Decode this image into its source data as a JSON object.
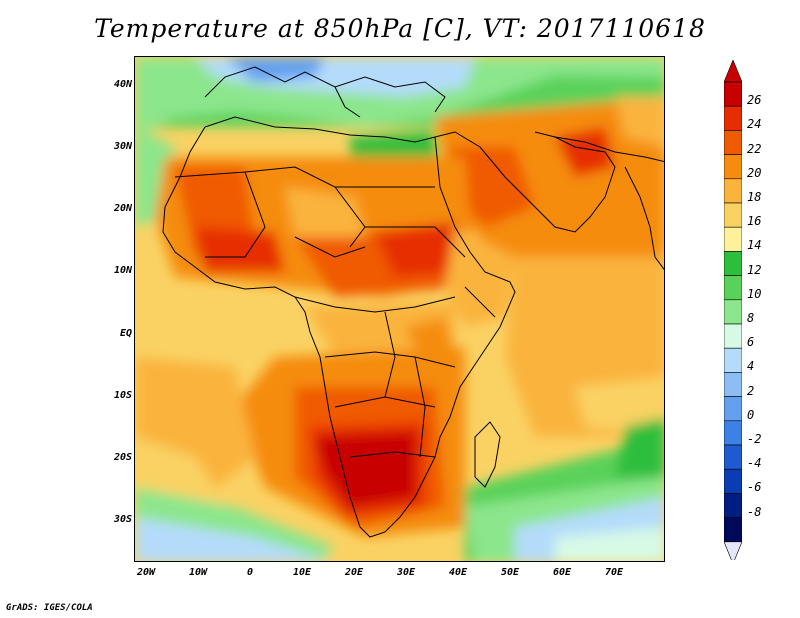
{
  "title": "Temperature at 850hPa [C], VT: 2017110618",
  "map": {
    "variable": "Temperature at 850hPa",
    "units": "C",
    "valid_time": "2017110618",
    "region": "Africa and Middle East",
    "lat_labels": [
      "40N",
      "30N",
      "20N",
      "10N",
      "EQ",
      "10S",
      "20S",
      "30S"
    ],
    "lon_labels": [
      "20W",
      "10W",
      "0",
      "10E",
      "20E",
      "30E",
      "40E",
      "50E",
      "60E",
      "70E"
    ]
  },
  "legend": {
    "levels": [
      "26",
      "24",
      "22",
      "20",
      "18",
      "16",
      "14",
      "12",
      "10",
      "8",
      "6",
      "4",
      "2",
      "0",
      "-2",
      "-4",
      "-6",
      "-8"
    ],
    "colors": [
      "#c80000",
      "#e62d00",
      "#f05a00",
      "#f58c0f",
      "#fab43c",
      "#fad264",
      "#fff09b",
      "#2dbe3c",
      "#5ad25a",
      "#8ce68c",
      "#d7fae6",
      "#b4dcfa",
      "#8cbef5",
      "#64a0f0",
      "#3c82e6",
      "#1e5ad2",
      "#0a3cb4",
      "#001e82",
      "#000a5a"
    ],
    "over_color": "#c80000",
    "under_color": "#e6e6fa"
  },
  "credit": "GrADS: IGES/COLA"
}
